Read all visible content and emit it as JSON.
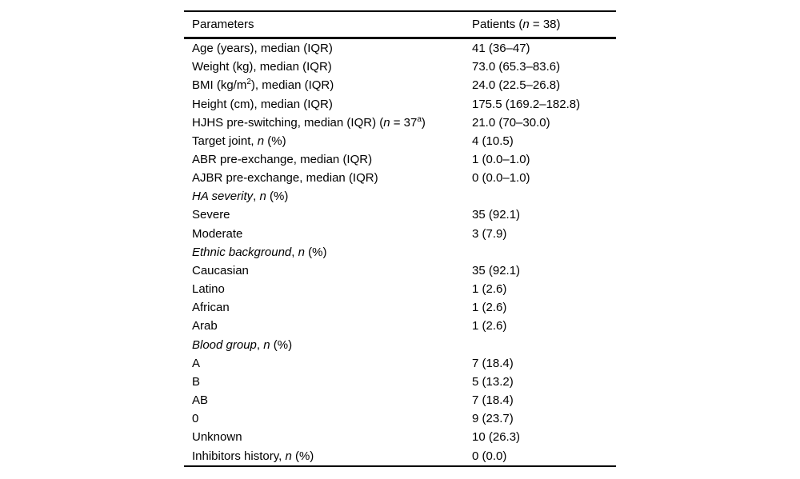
{
  "page": {
    "background_color": "#ffffff",
    "text_color": "#000000",
    "rule_color": "#000000"
  },
  "table": {
    "header": {
      "col1": [
        {
          "t": "Parameters"
        }
      ],
      "col2": [
        {
          "t": "Patients ("
        },
        {
          "t": "n",
          "s": "i"
        },
        {
          "t": " = 38)"
        }
      ]
    },
    "rows": [
      {
        "label": [
          {
            "t": "Age (years), median (IQR)"
          }
        ],
        "value": "41 (36–47)"
      },
      {
        "label": [
          {
            "t": "Weight (kg), median (IQR)"
          }
        ],
        "value": "73.0 (65.3–83.6)"
      },
      {
        "label": [
          {
            "t": "BMI (kg/m"
          },
          {
            "t": "2",
            "s": "sup"
          },
          {
            "t": "), median (IQR)"
          }
        ],
        "value": "24.0 (22.5–26.8)"
      },
      {
        "label": [
          {
            "t": "Height (cm), median (IQR)"
          }
        ],
        "value": "175.5 (169.2–182.8)"
      },
      {
        "label": [
          {
            "t": "HJHS pre-switching, median (IQR) ("
          },
          {
            "t": "n",
            "s": "i"
          },
          {
            "t": " = 37"
          },
          {
            "t": "a",
            "s": "sup"
          },
          {
            "t": ")"
          }
        ],
        "value": "21.0 (70–30.0)"
      },
      {
        "label": [
          {
            "t": "Target joint, "
          },
          {
            "t": "n",
            "s": "i"
          },
          {
            "t": " (%)"
          }
        ],
        "value": "4 (10.5)"
      },
      {
        "label": [
          {
            "t": "ABR pre-exchange, median (IQR)"
          }
        ],
        "value": "1 (0.0–1.0)"
      },
      {
        "label": [
          {
            "t": "AJBR pre-exchange, median (IQR)"
          }
        ],
        "value": "0 (0.0–1.0)"
      },
      {
        "label": [
          {
            "t": "HA severity",
            "s": "i"
          },
          {
            "t": ", "
          },
          {
            "t": "n",
            "s": "i"
          },
          {
            "t": " (%)"
          }
        ],
        "value": ""
      },
      {
        "label": [
          {
            "t": "Severe"
          }
        ],
        "value": "35 (92.1)"
      },
      {
        "label": [
          {
            "t": "Moderate"
          }
        ],
        "value": "3 (7.9)"
      },
      {
        "label": [
          {
            "t": "Ethnic background",
            "s": "i"
          },
          {
            "t": ", "
          },
          {
            "t": "n",
            "s": "i"
          },
          {
            "t": " (%)"
          }
        ],
        "value": ""
      },
      {
        "label": [
          {
            "t": "Caucasian"
          }
        ],
        "value": "35 (92.1)"
      },
      {
        "label": [
          {
            "t": "Latino"
          }
        ],
        "value": "1 (2.6)"
      },
      {
        "label": [
          {
            "t": "African"
          }
        ],
        "value": "1 (2.6)"
      },
      {
        "label": [
          {
            "t": "Arab"
          }
        ],
        "value": "1 (2.6)"
      },
      {
        "label": [
          {
            "t": "Blood group",
            "s": "i"
          },
          {
            "t": ", "
          },
          {
            "t": "n",
            "s": "i"
          },
          {
            "t": " (%)"
          }
        ],
        "value": ""
      },
      {
        "label": [
          {
            "t": "A"
          }
        ],
        "value": "7 (18.4)"
      },
      {
        "label": [
          {
            "t": "B"
          }
        ],
        "value": "5 (13.2)"
      },
      {
        "label": [
          {
            "t": "AB"
          }
        ],
        "value": "7 (18.4)"
      },
      {
        "label": [
          {
            "t": "0"
          }
        ],
        "value": "9 (23.7)"
      },
      {
        "label": [
          {
            "t": "Unknown"
          }
        ],
        "value": "10 (26.3)"
      },
      {
        "label": [
          {
            "t": "Inhibitors history, "
          },
          {
            "t": "n",
            "s": "i"
          },
          {
            "t": " (%)"
          }
        ],
        "value": "0 (0.0)"
      }
    ]
  }
}
